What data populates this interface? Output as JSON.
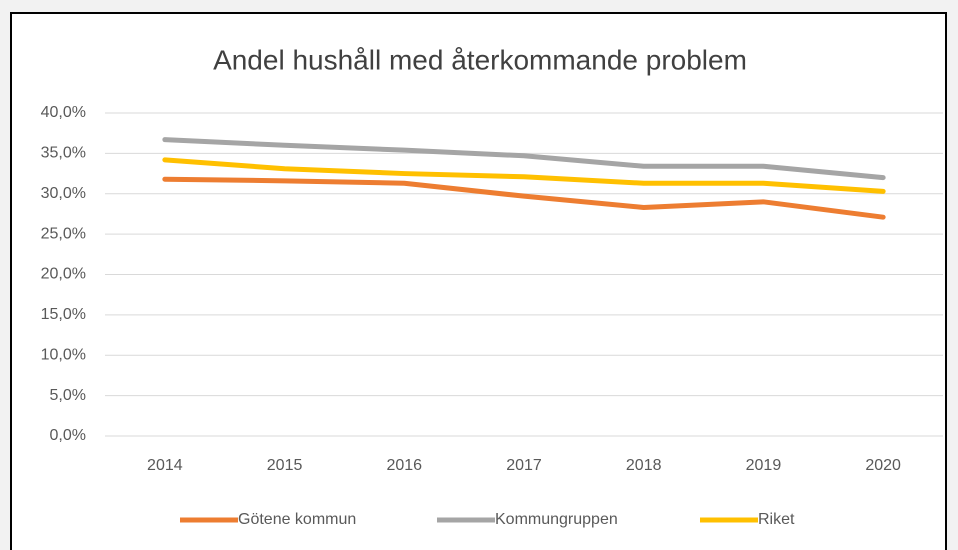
{
  "chart_data": {
    "type": "line",
    "title": "Andel hushåll med återkommande problem",
    "categories": [
      "2014",
      "2015",
      "2016",
      "2017",
      "2018",
      "2019",
      "2020"
    ],
    "series": [
      {
        "name": "Götene kommun",
        "color": "#ed7d31",
        "values": [
          31.8,
          31.6,
          31.3,
          29.7,
          28.3,
          29.0,
          27.1
        ]
      },
      {
        "name": "Kommungruppen",
        "color": "#a5a5a5",
        "values": [
          36.7,
          36.0,
          35.4,
          34.7,
          33.4,
          33.4,
          32.0
        ]
      },
      {
        "name": "Riket",
        "color": "#ffc000",
        "values": [
          34.2,
          33.1,
          32.5,
          32.1,
          31.3,
          31.3,
          30.3
        ]
      }
    ],
    "ylim": [
      0,
      40
    ],
    "yticks": [
      {
        "value": 0,
        "label": "0,0%"
      },
      {
        "value": 5,
        "label": "5,0%"
      },
      {
        "value": 10,
        "label": "10,0%"
      },
      {
        "value": 15,
        "label": "15,0%"
      },
      {
        "value": 20,
        "label": "20,0%"
      },
      {
        "value": 25,
        "label": "25,0%"
      },
      {
        "value": 30,
        "label": "30,0%"
      },
      {
        "value": 35,
        "label": "35,0%"
      },
      {
        "value": 40,
        "label": "40,0%"
      }
    ],
    "grid": true,
    "legend": "bottom"
  }
}
